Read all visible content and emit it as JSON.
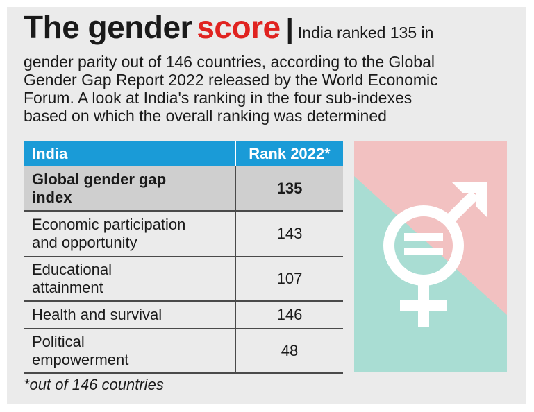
{
  "header": {
    "title_main": "The gender",
    "title_accent": "score",
    "separator": "|",
    "deck_lines": [
      "India ranked 135 in",
      "gender parity out of 146 countries, according to the Global",
      "Gender Gap Report 2022 released by the World Economic",
      "Forum. A look at India's ranking in the four sub-indexes",
      "based on which the overall ranking was determined"
    ]
  },
  "table": {
    "columns": [
      "India",
      "Rank 2022*"
    ],
    "rows": [
      {
        "label_lines": [
          "Global gender gap",
          "index"
        ],
        "rank": "135",
        "highlight": true
      },
      {
        "label_lines": [
          "Economic participation",
          "and opportunity"
        ],
        "rank": "143",
        "highlight": false
      },
      {
        "label_lines": [
          "Educational",
          "attainment"
        ],
        "rank": "107",
        "highlight": false
      },
      {
        "label_lines": [
          "Health and survival"
        ],
        "rank": "146",
        "highlight": false
      },
      {
        "label_lines": [
          "Political",
          "empowerment"
        ],
        "rank": "48",
        "highlight": false
      }
    ]
  },
  "footnote": "*out of 146 countries",
  "graphic": {
    "icon": "gender-equality-icon",
    "colors": {
      "pink": "#f2c1c1",
      "teal": "#a9ddd3",
      "symbol": "#ffffff"
    }
  }
}
